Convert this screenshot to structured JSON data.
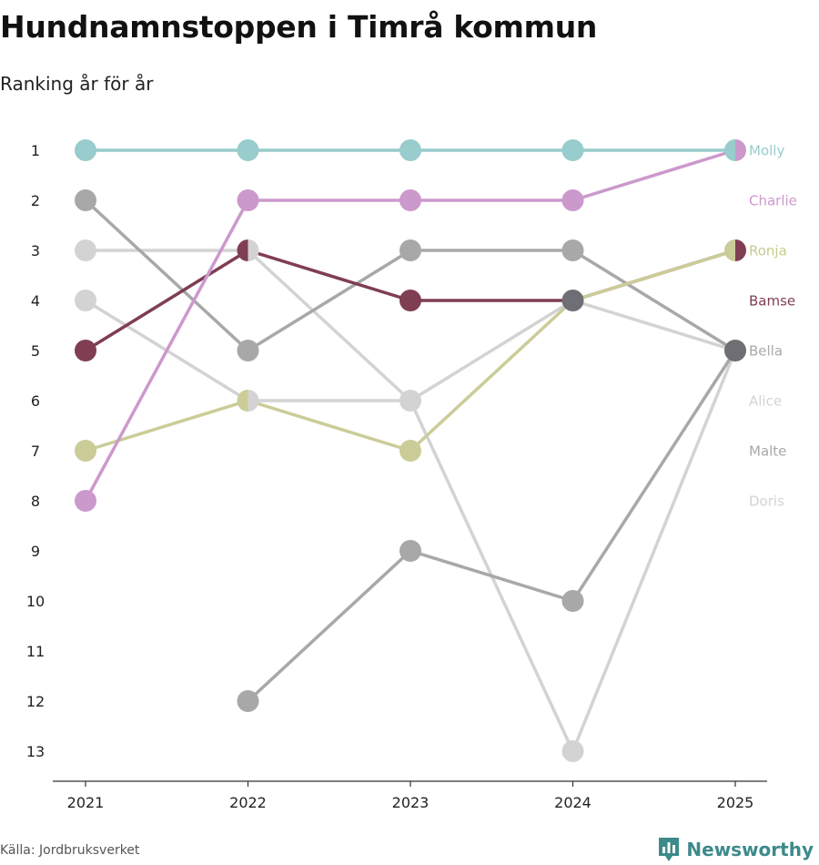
{
  "header": {
    "title": "Hundnamnstoppen i Timrå kommun",
    "subtitle": "Ranking år för år"
  },
  "footer": {
    "source": "Källa: Jordbruksverket",
    "brand": "Newsworthy",
    "brand_color": "#3d8a8a"
  },
  "chart_data": {
    "type": "line",
    "subtype": "bump",
    "title": "Hundnamnstoppen i Timrå kommun",
    "subtitle": "Ranking år för år",
    "x": [
      "2021",
      "2022",
      "2023",
      "2024",
      "2025"
    ],
    "y_ticks": [
      1,
      2,
      3,
      4,
      5,
      6,
      7,
      8,
      9,
      10,
      11,
      12,
      13
    ],
    "ylim": [
      1,
      13
    ],
    "y_reversed": true,
    "grid": false,
    "legend": "labels at line ends (right)",
    "series": [
      {
        "name": "Doris",
        "color": "#d3d3d3",
        "values": [
          4,
          6,
          6,
          13,
          5
        ]
      },
      {
        "name": "Alice",
        "color": "#d3d3d3",
        "values": [
          3,
          3,
          6,
          4,
          5
        ]
      },
      {
        "name": "Malte",
        "color": "#a8a8a8",
        "values": [
          null,
          12,
          9,
          10,
          5
        ]
      },
      {
        "name": "Bella",
        "color": "#a8a8a8",
        "values": [
          2,
          5,
          3,
          3,
          5
        ]
      },
      {
        "name": "Bamse",
        "color": "#7f3e52",
        "values": [
          5,
          3,
          4,
          4,
          3
        ]
      },
      {
        "name": "Ronja",
        "color": "#cccc99",
        "values": [
          7,
          6,
          7,
          4,
          3
        ]
      },
      {
        "name": "Charlie",
        "color": "#cc99cc",
        "values": [
          8,
          2,
          2,
          2,
          1
        ]
      },
      {
        "name": "Molly",
        "color": "#99cccc",
        "values": [
          1,
          1,
          1,
          1,
          1
        ]
      }
    ],
    "label_order": [
      "Molly",
      "Charlie",
      "Ronja",
      "Bamse",
      "Bella",
      "Alice",
      "Malte",
      "Doris"
    ],
    "label_colors": {
      "Molly": "#99cccc",
      "Charlie": "#cc99cc",
      "Ronja": "#c9c98e",
      "Bamse": "#7f3e52",
      "Bella": "#a8a8a8",
      "Alice": "#d3d3d3",
      "Malte": "#a8a8a8",
      "Doris": "#d3d3d3"
    },
    "shared_point_color": "#6e6e74"
  }
}
